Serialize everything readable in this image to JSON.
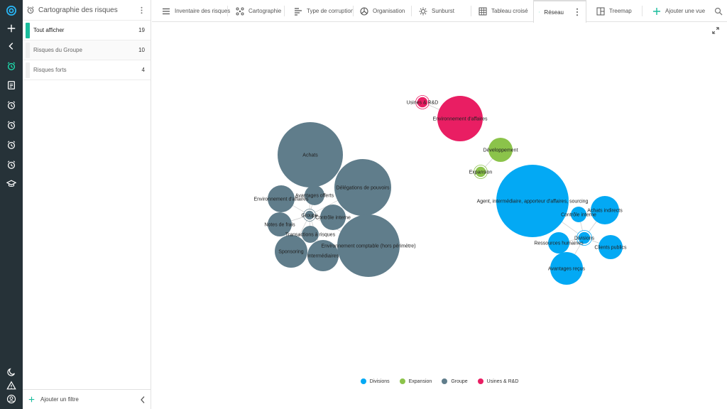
{
  "panel": {
    "title": "Cartographie des risques",
    "filters": [
      {
        "label": "Tout afficher",
        "count": "19"
      },
      {
        "label": "Risques du Groupe",
        "count": "10"
      },
      {
        "label": "Risques forts",
        "count": "4"
      }
    ],
    "add_filter": "Ajouter un filtre"
  },
  "tabs": [
    {
      "label": "Inventaire des risques",
      "icon": "list-icon"
    },
    {
      "label": "Cartographie",
      "icon": "scatter-icon"
    },
    {
      "label": "Type de corruption",
      "icon": "type-icon"
    },
    {
      "label": "Organisation",
      "icon": "organisation-icon"
    },
    {
      "label": "Sunburst",
      "icon": "sunburst-icon"
    },
    {
      "label": "Tableau croisé",
      "icon": "grid-icon"
    },
    {
      "label": "Réseau",
      "icon": "network-icon",
      "active": true
    },
    {
      "label": "Treemap",
      "icon": "treemap-icon"
    },
    {
      "label": "Ajouter une vue",
      "icon": "plus-icon"
    }
  ],
  "chart_data": {
    "type": "network",
    "groups": [
      {
        "name": "Divisions",
        "color": "#03a9f4"
      },
      {
        "name": "Expansion",
        "color": "#8bc34a"
      },
      {
        "name": "Groupe",
        "color": "#607d8b"
      },
      {
        "name": "Usines & R&D",
        "color": "#e91e63"
      }
    ],
    "nodes": [
      {
        "label": "Achats",
        "group": "Groupe"
      },
      {
        "label": "Délégations de pouvoirs",
        "group": "Groupe"
      },
      {
        "label": "Avantages offerts",
        "group": "Groupe"
      },
      {
        "label": "Environnement d'affaires",
        "group": "Groupe"
      },
      {
        "label": "Groupe",
        "group": "Groupe"
      },
      {
        "label": "Contrôle interne",
        "group": "Groupe"
      },
      {
        "label": "Notes de frais",
        "group": "Groupe"
      },
      {
        "label": "Transactions à risques",
        "group": "Groupe"
      },
      {
        "label": "Sponsoring",
        "group": "Groupe"
      },
      {
        "label": "Intermédiaires",
        "group": "Groupe"
      },
      {
        "label": "Environnement comptable (hors périmètre)",
        "group": "Groupe"
      },
      {
        "label": "Usines & R&D",
        "group": "Usines & R&D"
      },
      {
        "label": "Environnement d'affaires",
        "group": "Usines & R&D"
      },
      {
        "label": "Développement",
        "group": "Expansion"
      },
      {
        "label": "Expansion",
        "group": "Expansion"
      },
      {
        "label": "Agent, intermédiaire, apporteur d'affaires, sourcing",
        "group": "Divisions"
      },
      {
        "label": "Contrôle interne",
        "group": "Divisions"
      },
      {
        "label": "Achats indirects",
        "group": "Divisions"
      },
      {
        "label": "Divisions",
        "group": "Divisions"
      },
      {
        "label": "Ressources humaines",
        "group": "Divisions"
      },
      {
        "label": "Clients publics",
        "group": "Divisions"
      },
      {
        "label": "Avantages reçus",
        "group": "Divisions"
      }
    ]
  }
}
